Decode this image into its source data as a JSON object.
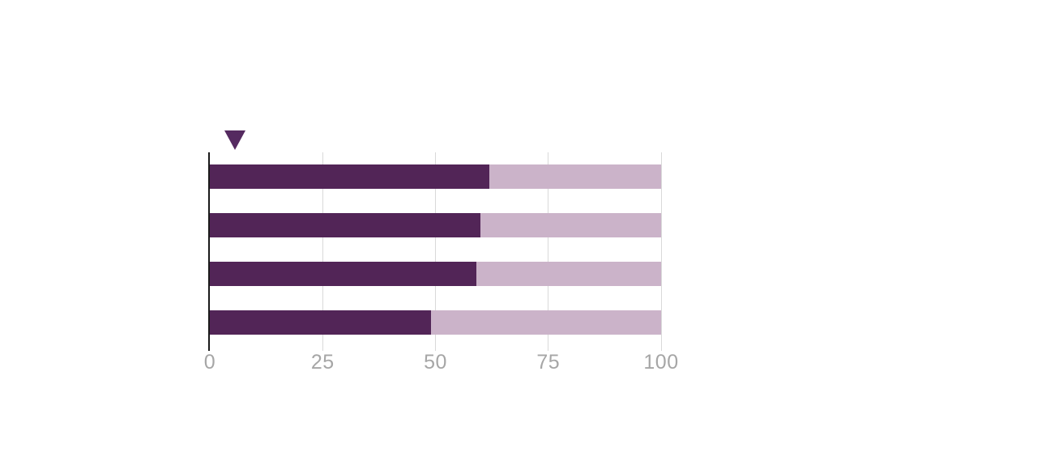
{
  "canvas": {
    "background": "#ffffff"
  },
  "chart_data": {
    "type": "bar",
    "orientation": "horizontal",
    "stacked": true,
    "categories": [
      "",
      "",
      "",
      ""
    ],
    "series": [
      {
        "name": "filled-portion",
        "color": "#522557",
        "values": [
          62,
          60,
          59,
          49
        ]
      },
      {
        "name": "remainder-portion",
        "color": "#cbb3c9",
        "values": [
          38,
          40,
          41,
          51
        ]
      }
    ],
    "xlim": [
      0,
      100
    ],
    "x_ticks": [
      {
        "value": 0,
        "label": "0"
      },
      {
        "value": 25,
        "label": "25"
      },
      {
        "value": 50,
        "label": "50"
      },
      {
        "value": 75,
        "label": "75"
      },
      {
        "value": 100,
        "label": "100"
      }
    ],
    "grid": {
      "show": true,
      "color": "#d9d9d9"
    },
    "axis_line_color": "#1a1a1a",
    "tick_label_color": "#a6a6a6",
    "legend": {
      "show": false
    },
    "annotation_marker": {
      "shape": "triangle-down",
      "x_value": 5.5,
      "color": "#552a60"
    }
  }
}
